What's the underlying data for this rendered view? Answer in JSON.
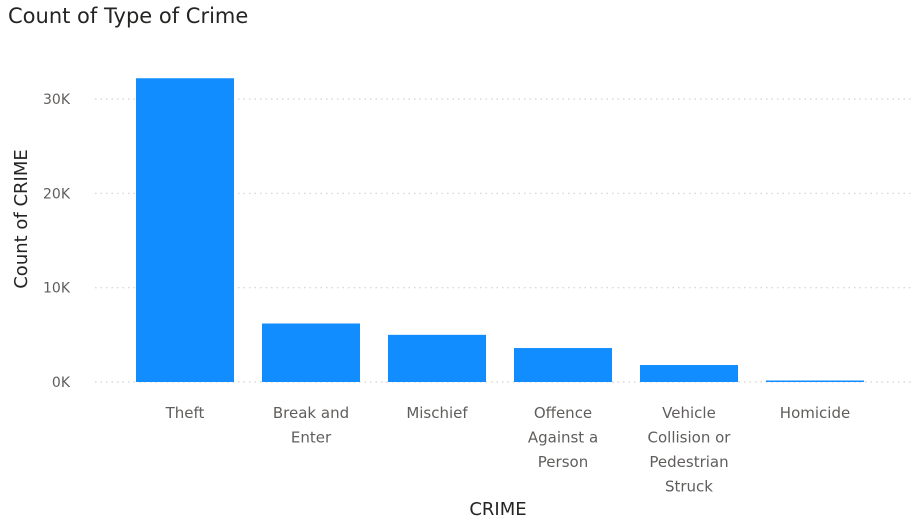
{
  "chart_data": {
    "type": "bar",
    "title": "Count of Type of Crime",
    "xlabel": "CRIME",
    "ylabel": "Count of CRIME",
    "categories": [
      [
        "Theft"
      ],
      [
        "Break and",
        "Enter"
      ],
      [
        "Mischief"
      ],
      [
        "Offence",
        "Against a",
        "Person"
      ],
      [
        "Vehicle",
        "Collision or",
        "Pedestrian",
        "Struck"
      ],
      [
        "Homicide"
      ]
    ],
    "values": [
      32200,
      6200,
      5000,
      3600,
      1800,
      150
    ],
    "ylim": [
      0,
      30000
    ],
    "yticks": [
      0,
      10000,
      20000,
      30000
    ],
    "ytick_labels": [
      "0K",
      "10K",
      "20K",
      "30K"
    ],
    "grid": true,
    "bar_color": "#118DFF"
  }
}
